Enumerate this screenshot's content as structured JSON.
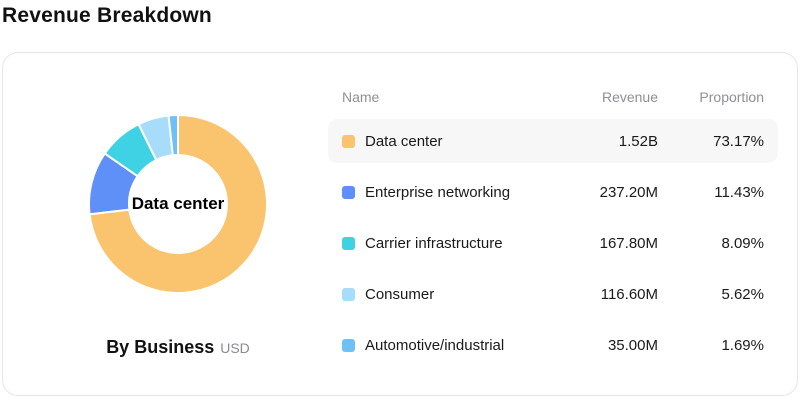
{
  "page": {
    "title": "Revenue Breakdown"
  },
  "card": {
    "chart": {
      "caption_title": "By Business",
      "caption_unit": "USD"
    },
    "table": {
      "headers": [
        "Name",
        "Revenue",
        "Proportion"
      ],
      "rows": [
        {
          "name": "Data center",
          "revenue": "1.52B",
          "proportion": "73.17%",
          "highlighted": true
        },
        {
          "name": "Enterprise networking",
          "revenue": "237.20M",
          "proportion": "11.43%",
          "highlighted": false
        },
        {
          "name": "Carrier infrastructure",
          "revenue": "167.80M",
          "proportion": "8.09%",
          "highlighted": false
        },
        {
          "name": "Consumer",
          "revenue": "116.60M",
          "proportion": "5.62%",
          "highlighted": false
        },
        {
          "name": "Automotive/industrial",
          "revenue": "35.00M",
          "proportion": "1.69%",
          "highlighted": false
        }
      ]
    }
  },
  "chart_data": {
    "type": "pie",
    "subtype": "donut",
    "title": "By Business",
    "unit": "USD",
    "center_label": "Data center",
    "categories": [
      "Data center",
      "Enterprise networking",
      "Carrier infrastructure",
      "Consumer",
      "Automotive/industrial"
    ],
    "values": [
      73.17,
      11.43,
      8.09,
      5.62,
      1.69
    ],
    "values_unit": "%",
    "revenue_labels": [
      "1.52B",
      "237.20M",
      "167.80M",
      "116.60M",
      "35.00M"
    ],
    "colors": [
      "#FAC36E",
      "#5E90F7",
      "#3FD2E5",
      "#A7DCFA",
      "#6EC1F7"
    ],
    "start_angle_deg": 0,
    "direction": "clockwise",
    "inner_radius_ratio": 0.55,
    "segment_gap_color": "#ffffff",
    "legend_position": "table-right"
  }
}
